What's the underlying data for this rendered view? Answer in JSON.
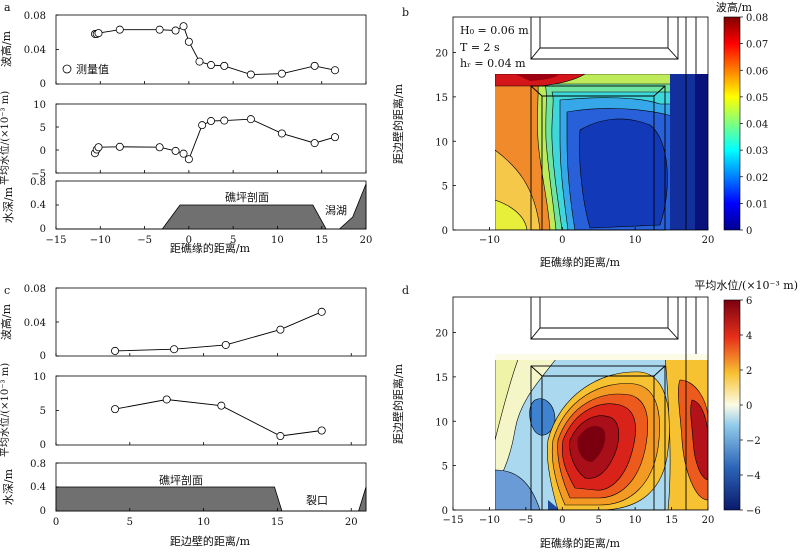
{
  "panels": {
    "a": {
      "letter": "a",
      "legend_label": "测量值",
      "xlabel": "距礁缘的距离/m",
      "xlim": [
        -15,
        20
      ],
      "xticks": [
        -15,
        -10,
        -5,
        0,
        5,
        10,
        15,
        20
      ],
      "wave": {
        "ylabel": "波高/m",
        "ylim": [
          0,
          0.08
        ],
        "yticks": [
          "0",
          "0.04",
          "0.08"
        ],
        "ytick_values": [
          0,
          0.04,
          0.08
        ],
        "x": [
          -10.6,
          -10.4,
          -10.2,
          -7.8,
          -3.3,
          -1.5,
          -0.6,
          0,
          1.2,
          2.5,
          4.0,
          7.0,
          10.5,
          14.2,
          16.5
        ],
        "y": [
          0.058,
          0.058,
          0.059,
          0.063,
          0.063,
          0.062,
          0.067,
          0.049,
          0.026,
          0.022,
          0.021,
          0.011,
          0.012,
          0.021,
          0.016
        ]
      },
      "setup": {
        "ylabel": "平均水位/(×10⁻³ m)",
        "ylim": [
          -5,
          10
        ],
        "yticks": [
          "−5",
          "0",
          "5",
          "10"
        ],
        "ytick_values": [
          -5,
          0,
          5,
          10
        ],
        "x": [
          -10.6,
          -10.4,
          -10.2,
          -7.8,
          -3.3,
          -1.5,
          -0.6,
          0,
          1.5,
          2.5,
          4.0,
          7.0,
          10.5,
          14.2,
          16.5
        ],
        "y": [
          -0.7,
          0.1,
          0.6,
          0.7,
          0.6,
          -0.2,
          -0.8,
          -2.0,
          5.4,
          6.3,
          6.4,
          6.7,
          3.6,
          1.5,
          2.8
        ]
      },
      "depth": {
        "ylabel": "水深/m",
        "ylim": [
          0,
          0.8
        ],
        "yticks": [
          "0",
          "0.4",
          "0.8"
        ],
        "ytick_values": [
          0,
          0.4,
          0.8
        ],
        "profile_x": [
          -15,
          -3,
          -1,
          14,
          15.5,
          17,
          18.5,
          20
        ],
        "profile_y": [
          0,
          0,
          0.4,
          0.4,
          0,
          0,
          0.2,
          0.75
        ],
        "label_reef": "礁坪剖面",
        "label_lagoon": "潟湖"
      }
    },
    "b": {
      "letter": "b",
      "params": [
        "H₀ = 0.06 m",
        "T = 2 s",
        "hᵣ = 0.04 m"
      ],
      "xlabel": "距礁缘的距离/m",
      "ylabel": "距边壁的距离/m",
      "xlim": [
        -15,
        20
      ],
      "ylim": [
        0,
        24
      ],
      "xticks": [
        -10,
        0,
        10,
        20
      ],
      "yticks": [
        0,
        5,
        10,
        15,
        20
      ],
      "colorbar_label": "波高/m",
      "colorbar_ticks": [
        "0",
        "0.01",
        "0.02",
        "0.03",
        "0.04",
        "0.05",
        "0.06",
        "0.07",
        "0.08"
      ]
    },
    "c": {
      "letter": "c",
      "xlabel": "距边壁的距离/m",
      "xlim": [
        0,
        21
      ],
      "xticks": [
        0,
        5,
        10,
        15,
        20
      ],
      "wave": {
        "ylabel": "波高/m",
        "ylim": [
          0,
          0.08
        ],
        "yticks": [
          "0",
          "0.04",
          "0.08"
        ],
        "ytick_values": [
          0,
          0.04,
          0.08
        ],
        "x": [
          4,
          8,
          11.5,
          15.2,
          18
        ],
        "y": [
          0.006,
          0.008,
          0.013,
          0.031,
          0.052
        ]
      },
      "setup": {
        "ylabel": "平均水位/(×10⁻³ m)",
        "ylim": [
          0,
          10
        ],
        "yticks": [
          "0",
          "5",
          "10"
        ],
        "ytick_values": [
          0,
          5,
          10
        ],
        "x": [
          4,
          7.5,
          11.2,
          15.2,
          18
        ],
        "y": [
          5.2,
          6.6,
          5.7,
          1.3,
          2.1
        ]
      },
      "depth": {
        "ylabel": "水深/m",
        "ylim": [
          0,
          0.8
        ],
        "yticks": [
          "0",
          "0.4",
          "0.8"
        ],
        "ytick_values": [
          0,
          0.4,
          0.8
        ],
        "profile_x": [
          0,
          14.8,
          15.3,
          20.5,
          21
        ],
        "profile_y": [
          0.4,
          0.4,
          0,
          0,
          0.4
        ],
        "label_reef": "礁坪剖面",
        "label_gap": "裂口"
      }
    },
    "d": {
      "letter": "d",
      "xlabel": "距礁缘的距离/m",
      "ylabel": "距边壁的距离/m",
      "xlim": [
        -15,
        20
      ],
      "ylim": [
        0,
        24
      ],
      "xticks": [
        -15,
        -10,
        -5,
        0,
        5,
        10,
        15,
        20
      ],
      "yticks": [
        0,
        5,
        10,
        15,
        20
      ],
      "colorbar_label": "平均水位/(×10⁻³ m)",
      "colorbar_ticks": [
        "−6",
        "−4",
        "−2",
        "0",
        "2",
        "4",
        "6"
      ]
    }
  }
}
